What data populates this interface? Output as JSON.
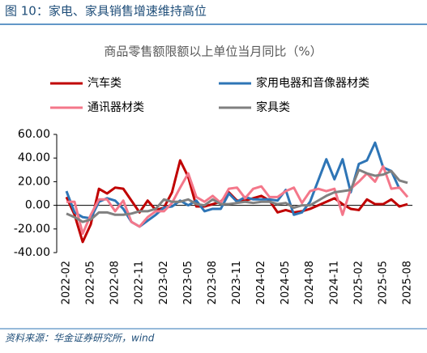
{
  "header": {
    "title": "图 10：家电、家具销售增速维持高位"
  },
  "chart_data": {
    "type": "line",
    "title": "商品零售额限额以上单位当月同比（%）",
    "categories": [
      "2022-02",
      null,
      null,
      "2022-05",
      null,
      null,
      "2022-08",
      null,
      null,
      "2022-11",
      null,
      null,
      "2023-02",
      null,
      null,
      "2023-05",
      null,
      null,
      "2023-08",
      null,
      null,
      "2023-11",
      null,
      null,
      "2024-02",
      null,
      null,
      "2024-05",
      null,
      null,
      "2024-08",
      null,
      null,
      "2024-11",
      null,
      null,
      "2025-02",
      null,
      null,
      "2025-05",
      null,
      null,
      "2025-08"
    ],
    "series": [
      {
        "name": "汽车类",
        "color": "#c00000",
        "values": [
          7,
          -8,
          -31,
          -16,
          14,
          10,
          15,
          14,
          4,
          -6,
          4,
          -4,
          -2,
          11,
          38,
          24,
          -1,
          -1,
          1,
          3,
          11,
          4,
          4,
          6,
          8,
          4,
          -6,
          -4,
          -6,
          -5,
          -3,
          0,
          3,
          6,
          1,
          -3,
          -4,
          5,
          1,
          1,
          5,
          -1,
          1
        ]
      },
      {
        "name": "家用电器和音像器材类",
        "color": "#2e75b6",
        "values": [
          12,
          -6,
          -10,
          -11,
          3,
          6,
          4,
          -3,
          -14,
          -18,
          -13,
          -8,
          -2,
          -1,
          4,
          0,
          4,
          -5,
          -3,
          -3,
          10,
          3,
          7,
          5,
          5,
          5,
          4,
          13,
          -8,
          -6,
          3,
          21,
          39,
          22,
          39,
          11,
          35,
          38,
          53,
          32,
          29,
          14,
          null
        ]
      },
      {
        "name": "通讯器材类",
        "color": "#f4778a",
        "values": [
          3,
          3,
          -24,
          -8,
          5,
          5,
          -5,
          4,
          -14,
          -18,
          -10,
          -5,
          -5,
          2,
          15,
          27,
          7,
          3,
          8,
          2,
          14,
          15,
          6,
          14,
          16,
          7,
          7,
          12,
          15,
          2,
          12,
          14,
          12,
          14,
          -8,
          14,
          20,
          27,
          20,
          33,
          14,
          15,
          7
        ]
      },
      {
        "name": "家具类",
        "color": "#808080",
        "values": [
          -7,
          -10,
          -14,
          -12,
          -6,
          -6,
          -8,
          -8,
          -7,
          -5,
          -5,
          -3,
          5,
          3,
          3,
          5,
          1,
          0,
          5,
          1,
          1,
          2,
          3,
          2,
          3,
          3,
          1,
          2,
          -2,
          0,
          0,
          4,
          8,
          11,
          12,
          13,
          30,
          27,
          25,
          26,
          29,
          21,
          19
        ]
      }
    ],
    "ylim": [
      -40,
      60
    ],
    "yticks": [
      {
        "value": -40,
        "label": "-40.00"
      },
      {
        "value": -20,
        "label": "-20.00"
      },
      {
        "value": 0,
        "label": "0.00"
      },
      {
        "value": 20,
        "label": "20.00"
      },
      {
        "value": 40,
        "label": "40.00"
      },
      {
        "value": 60,
        "label": "60.00"
      }
    ]
  },
  "footer": {
    "source": "资料来源：华金证券研究所，wind"
  }
}
